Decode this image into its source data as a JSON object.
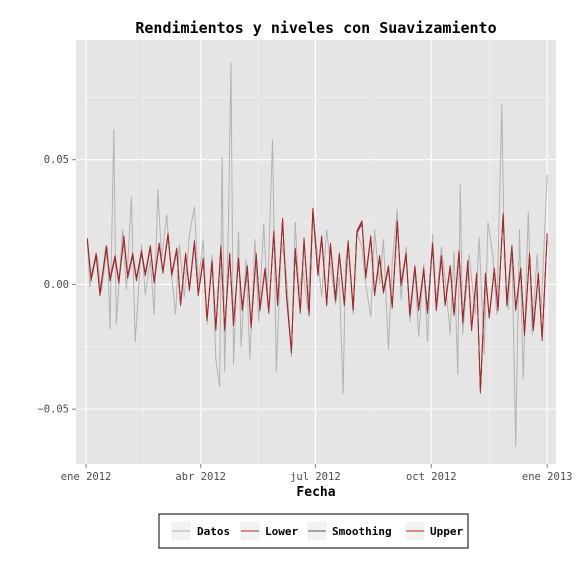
{
  "chart_data": {
    "type": "line",
    "title": "Rendimientos y niveles con Suavizamiento",
    "xlabel": "Fecha",
    "ylabel": "",
    "x_ticks": [
      {
        "date": "2012-01-01",
        "label": "ene 2012"
      },
      {
        "date": "2012-04-01",
        "label": "abr 2012"
      },
      {
        "date": "2012-07-01",
        "label": "jul 2012"
      },
      {
        "date": "2012-10-01",
        "label": "oct 2012"
      },
      {
        "date": "2013-01-01",
        "label": "ene 2013"
      }
    ],
    "y_ticks": [
      {
        "value": -0.05,
        "label": "−0.05"
      },
      {
        "value": 0.0,
        "label": "0.00"
      },
      {
        "value": 0.05,
        "label": "0.05"
      }
    ],
    "xlim": [
      "2011-12-24",
      "2013-01-08"
    ],
    "ylim": [
      -0.072,
      0.098
    ],
    "grid": true,
    "legend_position": "bottom",
    "colors": {
      "panel": "#e5e5e5",
      "grid_major": "#ffffff",
      "grid_minor": "#f2f2f2",
      "datos": "#b3b3b3",
      "lower": "#b22222",
      "smoothing": "#555555",
      "upper": "#b22222"
    },
    "series": [
      {
        "name": "Datos",
        "points": [
          [
            "2012-01-02",
            0.017
          ],
          [
            "2012-01-04",
            -0.001
          ],
          [
            "2012-01-06",
            0.006
          ],
          [
            "2012-01-10",
            0.011
          ],
          [
            "2012-01-13",
            -0.003
          ],
          [
            "2012-01-18",
            0.015
          ],
          [
            "2012-01-20",
            -0.018
          ],
          [
            "2012-01-23",
            0.062
          ],
          [
            "2012-01-25",
            -0.016
          ],
          [
            "2012-01-30",
            0.022
          ],
          [
            "2012-02-02",
            -0.002
          ],
          [
            "2012-02-06",
            0.035
          ],
          [
            "2012-02-09",
            -0.023
          ],
          [
            "2012-02-14",
            0.016
          ],
          [
            "2012-02-17",
            -0.004
          ],
          [
            "2012-02-21",
            0.01
          ],
          [
            "2012-02-24",
            -0.012
          ],
          [
            "2012-02-27",
            0.038
          ],
          [
            "2012-03-01",
            0.01
          ],
          [
            "2012-03-05",
            0.028
          ],
          [
            "2012-03-08",
            0.008
          ],
          [
            "2012-03-12",
            -0.012
          ],
          [
            "2012-03-15",
            0.016
          ],
          [
            "2012-03-19",
            -0.005
          ],
          [
            "2012-03-23",
            0.02
          ],
          [
            "2012-03-27",
            0.031
          ],
          [
            "2012-03-30",
            0.0
          ],
          [
            "2012-04-03",
            0.018
          ],
          [
            "2012-04-06",
            -0.016
          ],
          [
            "2012-04-10",
            0.012
          ],
          [
            "2012-04-13",
            -0.03
          ],
          [
            "2012-04-16",
            -0.041
          ],
          [
            "2012-04-18",
            0.051
          ],
          [
            "2012-04-20",
            -0.035
          ],
          [
            "2012-04-23",
            0.024
          ],
          [
            "2012-04-25",
            0.089
          ],
          [
            "2012-04-27",
            -0.032
          ],
          [
            "2012-05-01",
            0.021
          ],
          [
            "2012-05-03",
            -0.025
          ],
          [
            "2012-05-07",
            0.01
          ],
          [
            "2012-05-10",
            -0.03
          ],
          [
            "2012-05-14",
            0.018
          ],
          [
            "2012-05-17",
            -0.015
          ],
          [
            "2012-05-21",
            0.024
          ],
          [
            "2012-05-24",
            -0.005
          ],
          [
            "2012-05-28",
            0.058
          ],
          [
            "2012-05-31",
            -0.035
          ],
          [
            "2012-06-04",
            0.018
          ],
          [
            "2012-06-08",
            0.004
          ],
          [
            "2012-06-12",
            -0.029
          ],
          [
            "2012-06-15",
            0.025
          ],
          [
            "2012-06-18",
            -0.003
          ],
          [
            "2012-06-21",
            0.006
          ],
          [
            "2012-06-25",
            -0.01
          ],
          [
            "2012-06-29",
            0.03
          ],
          [
            "2012-07-03",
            0.01
          ],
          [
            "2012-07-06",
            -0.005
          ],
          [
            "2012-07-10",
            0.022
          ],
          [
            "2012-07-13",
            0.008
          ],
          [
            "2012-07-17",
            -0.008
          ],
          [
            "2012-07-20",
            0.003
          ],
          [
            "2012-07-23",
            -0.044
          ],
          [
            "2012-07-25",
            0.009
          ],
          [
            "2012-07-27",
            0.017
          ],
          [
            "2012-07-31",
            -0.012
          ],
          [
            "2012-08-03",
            0.021
          ],
          [
            "2012-08-07",
            0.015
          ],
          [
            "2012-08-10",
            0.0
          ],
          [
            "2012-08-14",
            -0.013
          ],
          [
            "2012-08-17",
            0.022
          ],
          [
            "2012-08-21",
            0.0
          ],
          [
            "2012-08-24",
            0.018
          ],
          [
            "2012-08-28",
            -0.026
          ],
          [
            "2012-08-31",
            0.009
          ],
          [
            "2012-09-04",
            0.03
          ],
          [
            "2012-09-07",
            -0.006
          ],
          [
            "2012-09-11",
            0.015
          ],
          [
            "2012-09-14",
            -0.015
          ],
          [
            "2012-09-18",
            0.006
          ],
          [
            "2012-09-21",
            -0.021
          ],
          [
            "2012-09-25",
            0.008
          ],
          [
            "2012-09-28",
            -0.023
          ],
          [
            "2012-10-02",
            0.02
          ],
          [
            "2012-10-05",
            -0.007
          ],
          [
            "2012-10-09",
            0.015
          ],
          [
            "2012-10-12",
            0.002
          ],
          [
            "2012-10-16",
            -0.02
          ],
          [
            "2012-10-19",
            0.013
          ],
          [
            "2012-10-22",
            -0.036
          ],
          [
            "2012-10-24",
            0.04
          ],
          [
            "2012-10-26",
            -0.02
          ],
          [
            "2012-10-31",
            0.012
          ],
          [
            "2012-11-05",
            -0.012
          ],
          [
            "2012-11-08",
            0.019
          ],
          [
            "2012-11-12",
            -0.028
          ],
          [
            "2012-11-15",
            0.025
          ],
          [
            "2012-11-19",
            0.011
          ],
          [
            "2012-11-22",
            -0.012
          ],
          [
            "2012-11-26",
            0.072
          ],
          [
            "2012-11-28",
            0.01
          ],
          [
            "2012-12-01",
            -0.01
          ],
          [
            "2012-12-04",
            0.016
          ],
          [
            "2012-12-07",
            -0.065
          ],
          [
            "2012-12-10",
            0.022
          ],
          [
            "2012-12-13",
            -0.038
          ],
          [
            "2012-12-17",
            0.029
          ],
          [
            "2012-12-20",
            -0.02
          ],
          [
            "2012-12-24",
            0.012
          ],
          [
            "2012-12-27",
            -0.013
          ],
          [
            "2013-01-01",
            0.044
          ]
        ]
      },
      {
        "name": "Lower",
        "points": [
          [
            "2012-01-02",
            0.018
          ],
          [
            "2012-01-05",
            0.002
          ],
          [
            "2012-01-09",
            0.012
          ],
          [
            "2012-01-12",
            -0.004
          ],
          [
            "2012-01-17",
            0.015
          ],
          [
            "2012-01-20",
            0.002
          ],
          [
            "2012-01-24",
            0.011
          ],
          [
            "2012-01-27",
            0.001
          ],
          [
            "2012-01-31",
            0.019
          ],
          [
            "2012-02-03",
            0.003
          ],
          [
            "2012-02-07",
            0.012
          ],
          [
            "2012-02-10",
            0.002
          ],
          [
            "2012-02-14",
            0.013
          ],
          [
            "2012-02-17",
            0.004
          ],
          [
            "2012-02-21",
            0.015
          ],
          [
            "2012-02-24",
            0.001
          ],
          [
            "2012-02-28",
            0.016
          ],
          [
            "2012-03-02",
            0.005
          ],
          [
            "2012-03-06",
            0.02
          ],
          [
            "2012-03-09",
            0.004
          ],
          [
            "2012-03-13",
            0.014
          ],
          [
            "2012-03-16",
            -0.008
          ],
          [
            "2012-03-20",
            0.012
          ],
          [
            "2012-03-23",
            -0.002
          ],
          [
            "2012-03-27",
            0.017
          ],
          [
            "2012-03-30",
            -0.004
          ],
          [
            "2012-04-03",
            0.01
          ],
          [
            "2012-04-06",
            -0.014
          ],
          [
            "2012-04-10",
            0.009
          ],
          [
            "2012-04-13",
            -0.018
          ],
          [
            "2012-04-17",
            0.015
          ],
          [
            "2012-04-20",
            -0.018
          ],
          [
            "2012-04-24",
            0.012
          ],
          [
            "2012-04-27",
            -0.016
          ],
          [
            "2012-05-01",
            0.01
          ],
          [
            "2012-05-04",
            -0.01
          ],
          [
            "2012-05-08",
            0.007
          ],
          [
            "2012-05-11",
            -0.017
          ],
          [
            "2012-05-15",
            0.012
          ],
          [
            "2012-05-18",
            -0.01
          ],
          [
            "2012-05-22",
            0.006
          ],
          [
            "2012-05-25",
            -0.011
          ],
          [
            "2012-05-29",
            0.021
          ],
          [
            "2012-06-01",
            -0.008
          ],
          [
            "2012-06-05",
            0.026
          ],
          [
            "2012-06-08",
            -0.004
          ],
          [
            "2012-06-12",
            -0.027
          ],
          [
            "2012-06-15",
            0.014
          ],
          [
            "2012-06-19",
            -0.011
          ],
          [
            "2012-06-22",
            0.018
          ],
          [
            "2012-06-26",
            -0.012
          ],
          [
            "2012-06-29",
            0.03
          ],
          [
            "2012-07-03",
            0.004
          ],
          [
            "2012-07-06",
            0.019
          ],
          [
            "2012-07-10",
            -0.008
          ],
          [
            "2012-07-13",
            0.016
          ],
          [
            "2012-07-17",
            -0.006
          ],
          [
            "2012-07-20",
            0.012
          ],
          [
            "2012-07-24",
            -0.008
          ],
          [
            "2012-07-27",
            0.017
          ],
          [
            "2012-07-31",
            -0.01
          ],
          [
            "2012-08-03",
            0.021
          ],
          [
            "2012-08-07",
            0.025
          ],
          [
            "2012-08-10",
            0.003
          ],
          [
            "2012-08-14",
            0.019
          ],
          [
            "2012-08-17",
            -0.004
          ],
          [
            "2012-08-21",
            0.011
          ],
          [
            "2012-08-24",
            -0.003
          ],
          [
            "2012-08-28",
            0.007
          ],
          [
            "2012-08-31",
            -0.009
          ],
          [
            "2012-09-04",
            0.025
          ],
          [
            "2012-09-07",
            0.0
          ],
          [
            "2012-09-11",
            0.012
          ],
          [
            "2012-09-14",
            -0.012
          ],
          [
            "2012-09-18",
            0.007
          ],
          [
            "2012-09-21",
            -0.01
          ],
          [
            "2012-09-25",
            0.006
          ],
          [
            "2012-09-28",
            -0.011
          ],
          [
            "2012-10-02",
            0.016
          ],
          [
            "2012-10-05",
            -0.01
          ],
          [
            "2012-10-09",
            0.011
          ],
          [
            "2012-10-12",
            -0.008
          ],
          [
            "2012-10-16",
            0.007
          ],
          [
            "2012-10-19",
            -0.012
          ],
          [
            "2012-10-23",
            0.013
          ],
          [
            "2012-10-26",
            -0.015
          ],
          [
            "2012-10-30",
            0.009
          ],
          [
            "2012-11-02",
            -0.018
          ],
          [
            "2012-11-06",
            0.004
          ],
          [
            "2012-11-09",
            -0.043
          ],
          [
            "2012-11-13",
            0.004
          ],
          [
            "2012-11-16",
            -0.013
          ],
          [
            "2012-11-20",
            0.006
          ],
          [
            "2012-11-23",
            -0.01
          ],
          [
            "2012-11-27",
            0.028
          ],
          [
            "2012-11-30",
            -0.008
          ],
          [
            "2012-12-04",
            0.015
          ],
          [
            "2012-12-07",
            -0.01
          ],
          [
            "2012-12-11",
            0.006
          ],
          [
            "2012-12-14",
            -0.02
          ],
          [
            "2012-12-18",
            0.012
          ],
          [
            "2012-12-21",
            -0.018
          ],
          [
            "2012-12-25",
            0.004
          ],
          [
            "2012-12-28",
            -0.022
          ],
          [
            "2013-01-01",
            0.02
          ]
        ]
      }
    ]
  },
  "legend": {
    "items": [
      {
        "label": "Datos",
        "color": "#b3b3b3"
      },
      {
        "label": "Lower",
        "color": "#b22222"
      },
      {
        "label": "Smoothing",
        "color": "#555555"
      },
      {
        "label": "Upper",
        "color": "#b22222"
      }
    ]
  }
}
